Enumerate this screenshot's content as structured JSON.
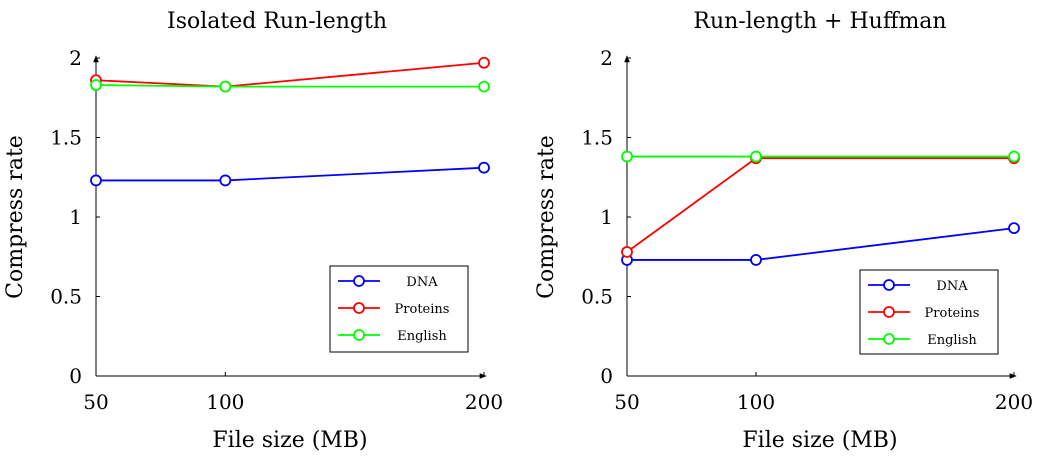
{
  "chart_data": [
    {
      "type": "line",
      "title": "Isolated Run-length",
      "xlabel": "File size (MB)",
      "ylabel": "Compress rate",
      "x": [
        50,
        100,
        200
      ],
      "x_ticks": [
        "50",
        "100",
        "200"
      ],
      "ylim": [
        0,
        2
      ],
      "y_ticks": [
        "0",
        "0.5",
        "1",
        "1.5",
        "2"
      ],
      "grid": false,
      "legend_position": "bottom-right",
      "series": [
        {
          "name": "DNA",
          "color": "#0000ff",
          "values": [
            1.23,
            1.23,
            1.31
          ]
        },
        {
          "name": "Proteins",
          "color": "#ff0000",
          "values": [
            1.86,
            1.82,
            1.97
          ]
        },
        {
          "name": "English",
          "color": "#00ff00",
          "values": [
            1.83,
            1.82,
            1.82
          ]
        }
      ]
    },
    {
      "type": "line",
      "title": "Run-length + Huffman",
      "xlabel": "File size (MB)",
      "ylabel": "Compress rate",
      "x": [
        50,
        100,
        200
      ],
      "x_ticks": [
        "50",
        "100",
        "200"
      ],
      "ylim": [
        0,
        2
      ],
      "y_ticks": [
        "0",
        "0.5",
        "1",
        "1.5",
        "2"
      ],
      "grid": false,
      "legend_position": "bottom-right",
      "series": [
        {
          "name": "DNA",
          "color": "#0000ff",
          "values": [
            0.73,
            0.73,
            0.93
          ]
        },
        {
          "name": "Proteins",
          "color": "#ff0000",
          "values": [
            0.78,
            1.37,
            1.37
          ]
        },
        {
          "name": "English",
          "color": "#00ff00",
          "values": [
            1.38,
            1.38,
            1.38
          ]
        }
      ]
    }
  ]
}
